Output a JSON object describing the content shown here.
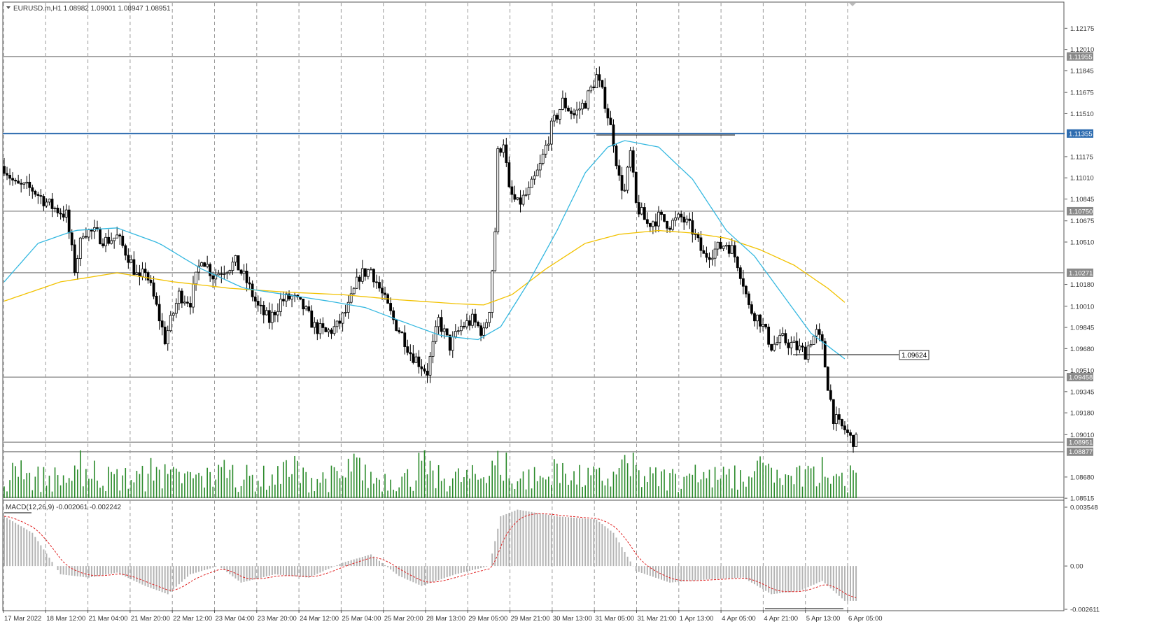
{
  "header": {
    "symbol_line": "EURUSD.m,H1  1.08982 1.09001 1.08947 1.08951"
  },
  "macd": {
    "label": "MACD(12,26,9) -0.002061 -0.002242",
    "axis_labels": [
      "0.003548",
      "0.00",
      "-0.002611"
    ]
  },
  "price_axis": {
    "ticks": [
      "1.12175",
      "1.12010",
      "1.11845",
      "1.11675",
      "1.11510",
      "1.11175",
      "1.11010",
      "1.10845",
      "1.10675",
      "1.10510",
      "1.10180",
      "1.10010",
      "1.09845",
      "1.09680",
      "1.09510",
      "1.09345",
      "1.09180",
      "1.09010",
      "1.08680",
      "1.08515"
    ],
    "levels": [
      {
        "label": "1.11955",
        "color": "#9a9a9a",
        "value": 1.11955
      },
      {
        "label": "1.11355",
        "color": "#2f6db0",
        "value": 1.11355
      },
      {
        "label": "1.10750",
        "color": "#9a9a9a",
        "value": 1.1075
      },
      {
        "label": "1.10271",
        "color": "#9a9a9a",
        "value": 1.10271
      },
      {
        "label": "1.09458",
        "color": "#9a9a9a",
        "value": 1.09458
      },
      {
        "label": "1.08951",
        "color": "#9a9a9a",
        "value": 1.08951
      },
      {
        "label": "1.08877",
        "color": "#9a9a9a",
        "value": 1.08877
      }
    ],
    "callout": "1.09624"
  },
  "time_axis": {
    "labels": [
      "17 Mar 2022",
      "18 Mar 12:00",
      "21 Mar 04:00",
      "21 Mar 20:00",
      "22 Mar 12:00",
      "23 Mar 04:00",
      "23 Mar 20:00",
      "24 Mar 12:00",
      "25 Mar 04:00",
      "25 Mar 20:00",
      "28 Mar 13:00",
      "29 Mar 05:00",
      "29 Mar 21:00",
      "30 Mar 13:00",
      "31 Mar 05:00",
      "31 Mar 21:00",
      "1 Apr 13:00",
      "4 Apr 05:00",
      "4 Apr 21:00",
      "5 Apr 13:00",
      "6 Apr 05:00"
    ]
  },
  "colors": {
    "candle": "#000000",
    "volume": "#2a8a2a",
    "ma_fast": "#35b8e0",
    "ma_slow": "#f2c200",
    "macd_hist": "#b4b4b4",
    "macd_signal": "#e02020",
    "level_blue": "#2f6db0",
    "grid": "#9a9a9a"
  },
  "chart_data": {
    "type": "candlestick",
    "symbol": "EURUSD.m",
    "timeframe": "H1",
    "ylim": [
      1.0851,
      1.1229
    ],
    "close_path": [
      [
        0,
        1.111
      ],
      [
        4,
        1.1095
      ],
      [
        10,
        1.1092
      ],
      [
        16,
        1.108
      ],
      [
        22,
        1.1072
      ],
      [
        25,
        1.103
      ],
      [
        28,
        1.106
      ],
      [
        32,
        1.1058
      ],
      [
        36,
        1.1052
      ],
      [
        40,
        1.1055
      ],
      [
        44,
        1.104
      ],
      [
        48,
        1.102
      ],
      [
        50,
        1.103
      ],
      [
        54,
        1.1
      ],
      [
        57,
        1.0975
      ],
      [
        62,
        1.101
      ],
      [
        66,
        1.1005
      ],
      [
        70,
        1.104
      ],
      [
        74,
        1.1025
      ],
      [
        78,
        1.103
      ],
      [
        82,
        1.1035
      ],
      [
        86,
        1.102
      ],
      [
        90,
        1.1
      ],
      [
        94,
        1.099
      ],
      [
        98,
        1.1005
      ],
      [
        102,
        1.1008
      ],
      [
        106,
        1.1
      ],
      [
        110,
        1.0985
      ],
      [
        114,
        1.098
      ],
      [
        118,
        1.0985
      ],
      [
        122,
        1.1
      ],
      [
        126,
        1.1025
      ],
      [
        130,
        1.103
      ],
      [
        134,
        1.101
      ],
      [
        138,
        1.099
      ],
      [
        142,
        1.0975
      ],
      [
        144,
        1.0965
      ],
      [
        148,
        1.0955
      ],
      [
        150,
        1.095
      ],
      [
        154,
        1.099
      ],
      [
        158,
        1.097
      ],
      [
        162,
        1.0985
      ],
      [
        166,
        1.099
      ],
      [
        170,
        1.098
      ],
      [
        172,
        1.1
      ],
      [
        174,
        1.106
      ],
      [
        175,
        1.112
      ],
      [
        177,
        1.113
      ],
      [
        179,
        1.109
      ],
      [
        182,
        1.108
      ],
      [
        186,
        1.109
      ],
      [
        190,
        1.111
      ],
      [
        194,
        1.114
      ],
      [
        198,
        1.116
      ],
      [
        202,
        1.115
      ],
      [
        206,
        1.116
      ],
      [
        210,
        1.118
      ],
      [
        213,
        1.116
      ],
      [
        216,
        1.113
      ],
      [
        218,
        1.11
      ],
      [
        220,
        1.109
      ],
      [
        222,
        1.112
      ],
      [
        224,
        1.108
      ],
      [
        228,
        1.1065
      ],
      [
        232,
        1.107
      ],
      [
        236,
        1.1065
      ],
      [
        240,
        1.107
      ],
      [
        244,
        1.106
      ],
      [
        248,
        1.104
      ],
      [
        252,
        1.1045
      ],
      [
        256,
        1.105
      ],
      [
        258,
        1.1045
      ],
      [
        260,
        1.1035
      ],
      [
        262,
        1.102
      ],
      [
        264,
        1.1
      ],
      [
        268,
        1.099
      ],
      [
        272,
        1.097
      ],
      [
        276,
        1.0975
      ],
      [
        280,
        1.097
      ],
      [
        284,
        1.0965
      ],
      [
        286,
        1.0975
      ],
      [
        288,
        1.098
      ],
      [
        290,
        1.097
      ],
      [
        292,
        1.094
      ],
      [
        294,
        1.0915
      ],
      [
        296,
        1.0908
      ],
      [
        298,
        1.0905
      ],
      [
        300,
        1.0898
      ],
      [
        302,
        1.0896
      ]
    ],
    "ma_fast_path": [
      [
        0,
        1.102
      ],
      [
        12,
        1.105
      ],
      [
        25,
        1.106
      ],
      [
        40,
        1.1062
      ],
      [
        55,
        1.105
      ],
      [
        70,
        1.103
      ],
      [
        85,
        1.1015
      ],
      [
        100,
        1.101
      ],
      [
        115,
        1.1005
      ],
      [
        128,
        1.1
      ],
      [
        140,
        1.099
      ],
      [
        155,
        1.0978
      ],
      [
        168,
        1.0975
      ],
      [
        176,
        1.0985
      ],
      [
        186,
        1.102
      ],
      [
        196,
        1.106
      ],
      [
        206,
        1.1105
      ],
      [
        214,
        1.1125
      ],
      [
        220,
        1.113
      ],
      [
        232,
        1.1125
      ],
      [
        244,
        1.11
      ],
      [
        256,
        1.106
      ],
      [
        266,
        1.104
      ],
      [
        276,
        1.101
      ],
      [
        286,
        1.098
      ],
      [
        298,
        1.096
      ]
    ],
    "ma_slow_path": [
      [
        0,
        1.1005
      ],
      [
        20,
        1.102
      ],
      [
        40,
        1.1027
      ],
      [
        60,
        1.102
      ],
      [
        80,
        1.1015
      ],
      [
        100,
        1.1012
      ],
      [
        120,
        1.101
      ],
      [
        140,
        1.1006
      ],
      [
        160,
        1.1003
      ],
      [
        170,
        1.1002
      ],
      [
        180,
        1.101
      ],
      [
        192,
        1.103
      ],
      [
        206,
        1.105
      ],
      [
        218,
        1.1057
      ],
      [
        232,
        1.106
      ],
      [
        244,
        1.1058
      ],
      [
        256,
        1.1054
      ],
      [
        268,
        1.1045
      ],
      [
        280,
        1.1033
      ],
      [
        292,
        1.1015
      ],
      [
        298,
        1.1004
      ]
    ],
    "macd_path": [
      [
        0,
        0.003
      ],
      [
        10,
        0.002
      ],
      [
        20,
        -0.0005
      ],
      [
        30,
        -0.0007
      ],
      [
        40,
        -0.0004
      ],
      [
        50,
        -0.0012
      ],
      [
        58,
        -0.0017
      ],
      [
        66,
        -0.0005
      ],
      [
        76,
        0.0
      ],
      [
        84,
        -0.001
      ],
      [
        96,
        -0.0005
      ],
      [
        108,
        -0.0007
      ],
      [
        120,
        0.0002
      ],
      [
        130,
        0.0007
      ],
      [
        140,
        -0.0006
      ],
      [
        148,
        -0.0012
      ],
      [
        160,
        -0.0005
      ],
      [
        172,
        0.0
      ],
      [
        176,
        0.003
      ],
      [
        182,
        0.0034
      ],
      [
        196,
        0.003
      ],
      [
        210,
        0.0028
      ],
      [
        216,
        0.002
      ],
      [
        224,
        -0.0003
      ],
      [
        236,
        -0.001
      ],
      [
        250,
        -0.0008
      ],
      [
        262,
        -0.0007
      ],
      [
        272,
        -0.0017
      ],
      [
        282,
        -0.0015
      ],
      [
        290,
        -0.0009
      ],
      [
        298,
        -0.0021
      ]
    ]
  }
}
